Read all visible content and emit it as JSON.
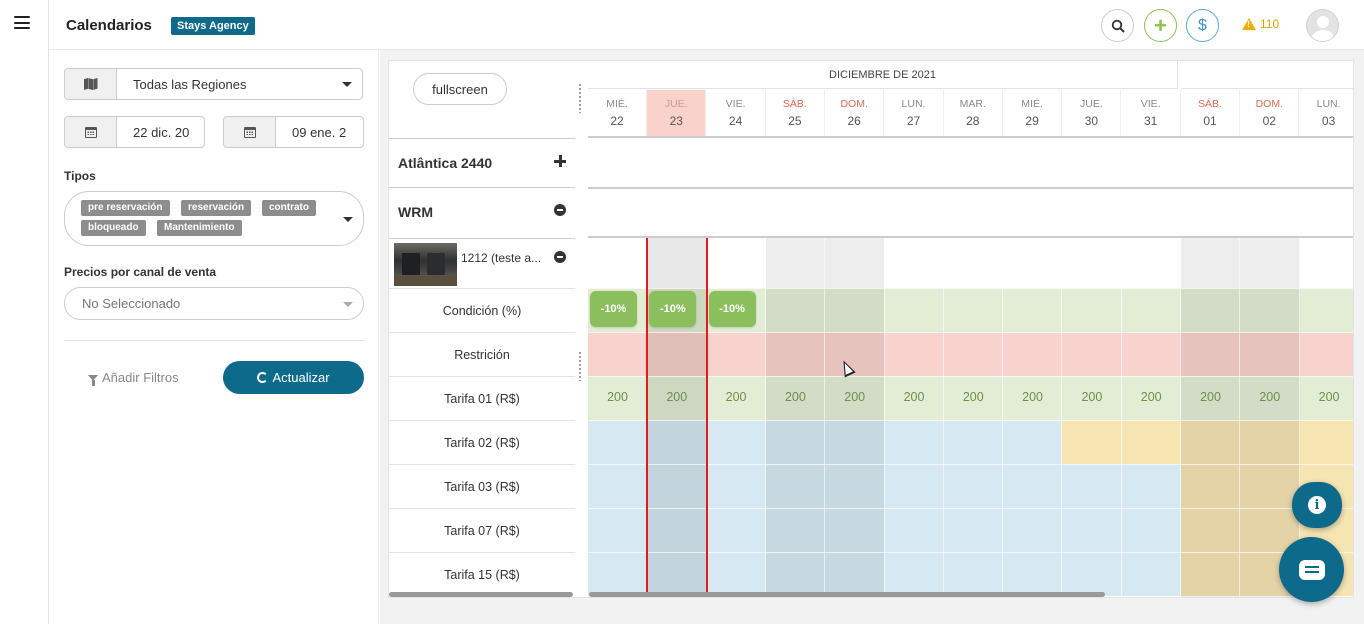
{
  "header": {
    "title": "Calendarios",
    "brand_badge": "Stays Agency",
    "alert_count": "110"
  },
  "filters": {
    "region": "Todas las Regiones",
    "date_from": "22 dic. 20",
    "date_to": "09 ene. 2",
    "tipos_label": "Tipos",
    "tipos": [
      "pre reservación",
      "reservación",
      "contrato",
      "bloqueado",
      "Mantenimiento"
    ],
    "channel_label": "Precios por canal de venta",
    "channel_placeholder": "No Seleccionado",
    "add_filters": "Añadir Filtros",
    "update": "Actualizar"
  },
  "calendar": {
    "fullscreen": "fullscreen",
    "month": "DICIEMBRE DE 2021",
    "days": [
      {
        "dow": "MIÉ.",
        "dom": "22",
        "weekend": false,
        "today": false
      },
      {
        "dow": "JUE.",
        "dom": "23",
        "weekend": false,
        "today": true
      },
      {
        "dow": "VIE.",
        "dom": "24",
        "weekend": false,
        "today": false
      },
      {
        "dow": "SÁB.",
        "dom": "25",
        "weekend": true,
        "today": false
      },
      {
        "dow": "DOM.",
        "dom": "26",
        "weekend": true,
        "today": false
      },
      {
        "dow": "LUN.",
        "dom": "27",
        "weekend": false,
        "today": false
      },
      {
        "dow": "MAR.",
        "dom": "28",
        "weekend": false,
        "today": false
      },
      {
        "dow": "MIÉ.",
        "dom": "29",
        "weekend": false,
        "today": false
      },
      {
        "dow": "JUE.",
        "dom": "30",
        "weekend": false,
        "today": false
      },
      {
        "dow": "VIE.",
        "dom": "31",
        "weekend": false,
        "today": false
      },
      {
        "dow": "SÁB.",
        "dom": "01",
        "weekend": true,
        "today": false
      },
      {
        "dow": "DOM.",
        "dom": "02",
        "weekend": true,
        "today": false
      },
      {
        "dow": "LUN.",
        "dom": "03",
        "weekend": false,
        "today": false
      }
    ],
    "properties": [
      {
        "name": "Atlântica 2440",
        "control": "expand"
      },
      {
        "name": "WRM",
        "control": "collapse"
      }
    ],
    "unit": {
      "name": "1212 (teste a..."
    },
    "rows": [
      {
        "label": "Condición (%)",
        "values": [
          "-10%",
          "-10%",
          "-10%",
          "",
          "",
          "",
          "",
          "",
          "",
          "",
          "",
          "",
          ""
        ]
      },
      {
        "label": "Restrición",
        "values": []
      },
      {
        "label": "Tarifa 01 (R$)",
        "values": [
          "200",
          "200",
          "200",
          "200",
          "200",
          "200",
          "200",
          "200",
          "200",
          "200",
          "200",
          "200",
          "200"
        ]
      },
      {
        "label": "Tarifa 02 (R$)",
        "values": []
      },
      {
        "label": "Tarifa 03 (R$)",
        "values": []
      },
      {
        "label": "Tarifa 07 (R$)",
        "values": []
      },
      {
        "label": "Tarifa 15 (R$)",
        "values": []
      }
    ]
  },
  "colors": {
    "brand": "#0e6a8a",
    "condition": "#e3edd6",
    "restriction": "#f8d2cc",
    "tarifa01": "#e3edd6",
    "tarifa_blue": "#d6e9f2",
    "tarifa_yellow": "#f6e4b3",
    "today_line": "#e01c1c"
  }
}
